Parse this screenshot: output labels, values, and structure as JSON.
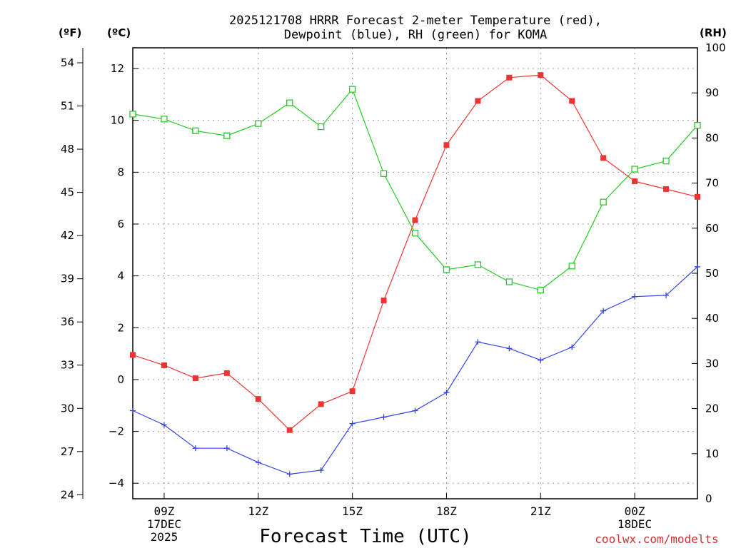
{
  "chart_data": {
    "type": "line",
    "title_line1": "2025121708 HRRR Forecast 2-meter Temperature (red),",
    "title_line2": "Dewpoint (blue), RH (green) for KOMA",
    "xlabel": "Forecast Time (UTC)",
    "credit": "coolwx.com/modelts",
    "units": {
      "fahrenheit": "(ºF)",
      "celsius": "(ºC)",
      "rh": "(RH)"
    },
    "x_hours": [
      8,
      9,
      10,
      11,
      12,
      13,
      14,
      15,
      16,
      17,
      18,
      19,
      20,
      21,
      22,
      23,
      24,
      25,
      26
    ],
    "x_ticks": [
      {
        "hour": 9,
        "labels": [
          "09Z",
          "17DEC",
          "2025"
        ]
      },
      {
        "hour": 12,
        "labels": [
          "12Z"
        ]
      },
      {
        "hour": 15,
        "labels": [
          "15Z"
        ]
      },
      {
        "hour": 18,
        "labels": [
          "18Z"
        ]
      },
      {
        "hour": 21,
        "labels": [
          "21Z"
        ]
      },
      {
        "hour": 24,
        "labels": [
          "00Z",
          "18DEC"
        ]
      }
    ],
    "xlim": [
      8,
      26
    ],
    "celsius_ylim": [
      -4.6,
      12.8
    ],
    "celsius_ticks": [
      "−4",
      "−2",
      "0",
      "2",
      "4",
      "6",
      "8",
      "10",
      "12"
    ],
    "fahrenheit_ticks": [
      "24",
      "27",
      "30",
      "33",
      "36",
      "39",
      "42",
      "45",
      "48",
      "51",
      "54"
    ],
    "rh_ylim": [
      0,
      100
    ],
    "rh_ticks": [
      "0",
      "10",
      "20",
      "30",
      "40",
      "50",
      "60",
      "70",
      "80",
      "90",
      "100"
    ],
    "series": [
      {
        "name": "Temperature",
        "unit": "C",
        "color": "#ee3333",
        "marker": "filled-square",
        "values": [
          0.95,
          0.55,
          0.05,
          0.25,
          -0.75,
          -1.95,
          -0.95,
          -0.45,
          3.05,
          6.15,
          9.05,
          10.75,
          11.65,
          11.75,
          10.75,
          8.55,
          7.65,
          7.35,
          7.05
        ]
      },
      {
        "name": "Dewpoint",
        "unit": "C",
        "color": "#3344ee",
        "marker": "plus",
        "values": [
          -1.2,
          -1.75,
          -2.65,
          -2.65,
          -3.2,
          -3.65,
          -3.5,
          -1.7,
          -1.45,
          -1.2,
          -0.5,
          1.45,
          1.2,
          0.75,
          1.25,
          2.65,
          3.2,
          3.25,
          4.35
        ]
      },
      {
        "name": "RH",
        "unit": "%",
        "color": "#22cc22",
        "marker": "open-square",
        "values": [
          85.3,
          84.2,
          81.6,
          80.5,
          83.2,
          87.8,
          82.5,
          90.8,
          72.1,
          58.9,
          50.8,
          51.9,
          48.1,
          46.3,
          51.6,
          65.8,
          73.1,
          74.9,
          82.8
        ]
      }
    ]
  }
}
